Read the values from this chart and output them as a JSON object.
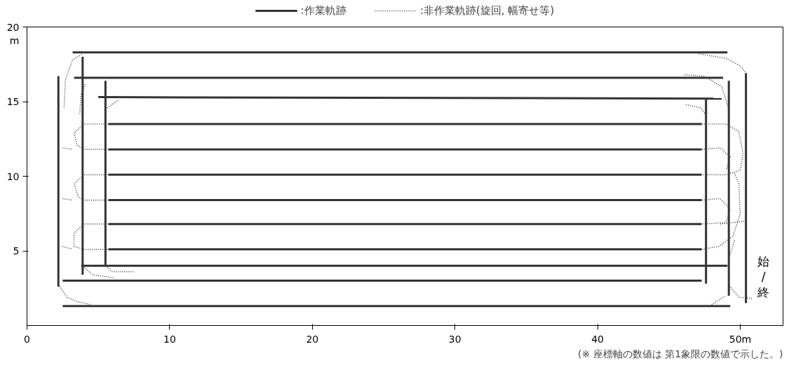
{
  "chart_data": {
    "type": "line",
    "xlim": [
      0,
      53
    ],
    "ylim": [
      0,
      20
    ],
    "xticks": [
      0,
      10,
      20,
      30,
      40,
      {
        "value": 50,
        "label": "50m"
      }
    ],
    "yticks": [
      5,
      10,
      15,
      20
    ],
    "ylabel": "m",
    "legend": "top",
    "grid": false,
    "annotations": [
      "始/終",
      "(※ 座標軸の数値は 第1象限の数値で示した。)"
    ],
    "series": [
      {
        "name": ":作業軌跡",
        "color": "#333333",
        "line_style": "solid",
        "x": [
          3.2,
          49.1
        ],
        "values": [
          18.3,
          18.3
        ]
      },
      {
        "color": "#333333",
        "line_style": "solid",
        "x": [
          3.3,
          48.8
        ],
        "values": [
          16.6,
          16.6
        ]
      },
      {
        "color": "#333333",
        "line_style": "solid",
        "x": [
          5.0,
          48.7
        ],
        "values": [
          15.3,
          15.2
        ]
      },
      {
        "color": "#333333",
        "line_style": "solid",
        "x": [
          5.7,
          47.3
        ],
        "values": [
          13.5,
          13.5
        ]
      },
      {
        "color": "#333333",
        "line_style": "solid",
        "x": [
          5.7,
          47.3
        ],
        "values": [
          11.8,
          11.8
        ]
      },
      {
        "color": "#333333",
        "line_style": "solid",
        "x": [
          5.7,
          47.3
        ],
        "values": [
          10.1,
          10.1
        ]
      },
      {
        "color": "#333333",
        "line_style": "solid",
        "x": [
          5.7,
          47.3
        ],
        "values": [
          8.4,
          8.4
        ]
      },
      {
        "color": "#333333",
        "line_style": "solid",
        "x": [
          5.7,
          47.3
        ],
        "values": [
          6.8,
          6.8
        ]
      },
      {
        "color": "#333333",
        "line_style": "solid",
        "x": [
          5.7,
          47.3
        ],
        "values": [
          5.1,
          5.1
        ]
      },
      {
        "color": "#333333",
        "line_style": "solid",
        "x": [
          3.8,
          49.1
        ],
        "values": [
          4.0,
          4.0
        ]
      },
      {
        "color": "#333333",
        "line_style": "solid",
        "x": [
          2.5,
          47.3
        ],
        "values": [
          3.0,
          3.0
        ]
      },
      {
        "color": "#333333",
        "line_style": "solid",
        "x": [
          2.5,
          49.3
        ],
        "values": [
          1.3,
          1.3
        ]
      },
      {
        "color": "#333333",
        "line_style": "solid",
        "x": [
          2.2,
          2.2
        ],
        "values": [
          16.7,
          2.6
        ]
      },
      {
        "color": "#333333",
        "line_style": "solid",
        "x": [
          3.9,
          3.9
        ],
        "values": [
          18.0,
          3.4
        ]
      },
      {
        "color": "#333333",
        "line_style": "solid",
        "x": [
          5.5,
          5.5
        ],
        "values": [
          16.4,
          4.0
        ]
      },
      {
        "color": "#333333",
        "line_style": "solid",
        "x": [
          47.6,
          47.6
        ],
        "values": [
          15.2,
          2.8
        ]
      },
      {
        "color": "#333333",
        "line_style": "solid",
        "x": [
          49.2,
          49.2
        ],
        "values": [
          16.4,
          2.0
        ]
      },
      {
        "color": "#333333",
        "line_style": "solid",
        "x": [
          50.4,
          50.4
        ],
        "values": [
          16.9,
          1.5
        ]
      },
      {
        "name": ":非作業軌跡(旋回, 幅寄せ等)",
        "color": "#444444",
        "line_style": "dotted",
        "x": [
          5.7,
          4.0,
          3.3,
          3.5,
          4.0,
          5.7
        ],
        "values": [
          13.5,
          13.5,
          12.9,
          12.1,
          11.8,
          11.8
        ]
      },
      {
        "color": "#444444",
        "line_style": "dotted",
        "x": [
          5.7,
          4.0,
          3.3,
          3.6,
          4.0,
          5.7
        ],
        "values": [
          10.1,
          10.1,
          9.5,
          8.6,
          8.4,
          8.4
        ]
      },
      {
        "color": "#444444",
        "line_style": "dotted",
        "x": [
          5.7,
          4.0,
          3.3,
          3.3,
          4.0,
          5.7
        ],
        "values": [
          6.8,
          6.8,
          6.2,
          5.3,
          5.1,
          5.1
        ]
      },
      {
        "color": "#444444",
        "line_style": "dotted",
        "x": [
          2.5,
          3.2
        ],
        "values": [
          11.9,
          11.8
        ]
      },
      {
        "color": "#444444",
        "line_style": "dotted",
        "x": [
          2.5,
          3.2
        ],
        "values": [
          8.5,
          8.4
        ]
      },
      {
        "color": "#444444",
        "line_style": "dotted",
        "x": [
          2.5,
          3.2
        ],
        "values": [
          5.3,
          5.1
        ]
      },
      {
        "color": "#444444",
        "line_style": "dotted",
        "x": [
          2.6,
          2.7,
          3.2,
          3.9
        ],
        "values": [
          14.6,
          16.5,
          17.8,
          18.2
        ]
      },
      {
        "color": "#444444",
        "line_style": "dotted",
        "x": [
          3.7,
          3.8,
          4.1
        ],
        "values": [
          14.2,
          15.5,
          16.2
        ]
      },
      {
        "color": "#444444",
        "line_style": "dotted",
        "x": [
          5.5,
          6.4
        ],
        "values": [
          14.5,
          15.1
        ]
      },
      {
        "color": "#444444",
        "line_style": "dotted",
        "x": [
          2.3,
          2.8,
          3.5,
          4.5
        ],
        "values": [
          2.6,
          1.9,
          1.6,
          1.4
        ]
      },
      {
        "color": "#444444",
        "line_style": "dotted",
        "x": [
          5.5,
          6.0,
          7.5
        ],
        "values": [
          4.0,
          3.6,
          3.6
        ]
      },
      {
        "color": "#444444",
        "line_style": "dotted",
        "x": [
          4.0,
          4.6,
          6.1
        ],
        "values": [
          3.9,
          3.4,
          3.2
        ]
      },
      {
        "color": "#444444",
        "line_style": "dotted",
        "x": [
          47.1,
          49.0,
          50.0,
          50.4
        ],
        "values": [
          18.2,
          17.9,
          17.4,
          16.9
        ]
      },
      {
        "color": "#444444",
        "line_style": "dotted",
        "x": [
          46.1,
          47.5,
          48.7,
          49.2
        ],
        "values": [
          16.8,
          16.7,
          16.0,
          14.5
        ]
      },
      {
        "color": "#444444",
        "line_style": "dotted",
        "x": [
          46.2,
          47.2,
          47.6
        ],
        "values": [
          14.8,
          14.6,
          14.1
        ]
      },
      {
        "color": "#444444",
        "line_style": "dotted",
        "x": [
          47.3,
          49.0,
          49.9,
          50.2,
          50.0,
          49.0,
          47.3
        ],
        "values": [
          13.5,
          13.5,
          13.0,
          11.5,
          10.4,
          10.1,
          10.1
        ]
      },
      {
        "color": "#444444",
        "line_style": "dotted",
        "x": [
          47.3,
          48.6,
          49.3,
          49.0
        ],
        "values": [
          11.8,
          11.9,
          11.3,
          10.4
        ]
      },
      {
        "color": "#444444",
        "line_style": "dotted",
        "x": [
          47.3,
          48.6,
          49.3,
          49.0,
          47.3
        ],
        "values": [
          8.4,
          8.5,
          7.8,
          6.9,
          6.8
        ]
      },
      {
        "color": "#444444",
        "line_style": "dotted",
        "x": [
          48.6,
          50.4
        ],
        "values": [
          6.8,
          7.0
        ]
      },
      {
        "color": "#444444",
        "line_style": "dotted",
        "x": [
          47.3,
          48.5,
          49.5,
          50.0,
          49.9,
          49.6
        ],
        "values": [
          5.1,
          5.3,
          6.0,
          7.5,
          9.5,
          10.2
        ]
      },
      {
        "color": "#444444",
        "line_style": "dotted",
        "x": [
          49.6,
          49.2,
          49.2,
          49.9,
          50.9
        ],
        "values": [
          5.7,
          4.5,
          2.7,
          1.9,
          1.8
        ]
      },
      {
        "color": "#444444",
        "line_style": "dotted",
        "x": [
          48.0,
          49.0
        ],
        "values": [
          1.4,
          2.0
        ]
      }
    ]
  }
}
